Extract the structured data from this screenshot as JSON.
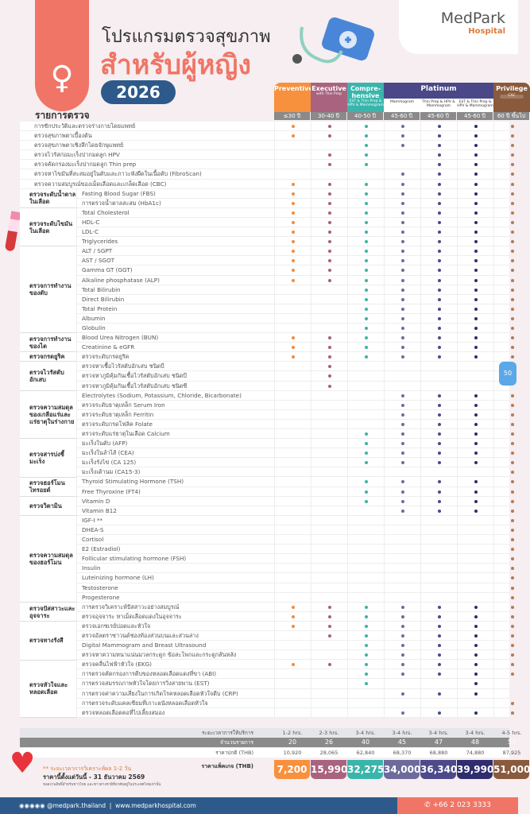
{
  "header": {
    "title_line1": "โปรแกรมตรวจสุขภาพ",
    "title_line2": "สำหรับผู้หญิง",
    "year": "2026",
    "brand": "MedPark",
    "brand_sub": "Hospital",
    "list_title": "รายการตรวจ"
  },
  "columns": [
    {
      "name": "Preventive",
      "sub": "",
      "age": "≤30 ปี",
      "color": "#f7913d",
      "dot": "#f28b3c"
    },
    {
      "name": "Executive",
      "sub": "with Thin Prep",
      "age": "30-40 ปี",
      "color": "#a9637f",
      "dot": "#a8607e"
    },
    {
      "name": "Compre-hensive",
      "sub": "EST & Thin Prep & HPV & Mammogram",
      "age": "40-50 ปี",
      "color": "#3ab5ac",
      "dot": "#3bb3a8"
    },
    {
      "name": "",
      "sub": "Mammogram",
      "age": "45-60 ปี",
      "color": "#6d6a9c",
      "dot": "#6d6a9c"
    },
    {
      "name": "",
      "sub": "Thin Prep & HPV & Mammogram",
      "age": "45-60 ปี",
      "color": "#4c4a8a",
      "dot": "#4c4a8a"
    },
    {
      "name": "",
      "sub": "EST & Thin Prep & HPV & Mammogram",
      "age": "45-60 ปี",
      "color": "#2f2d6e",
      "dot": "#2f2d6e"
    },
    {
      "name": "Privilege",
      "sub": "CAC",
      "age": "60 ปี ขึ้นไป",
      "color": "#8a5a3c",
      "dot": "#b07c5a"
    }
  ],
  "platinum_label": "Platinum",
  "groups": [
    {
      "label": "",
      "rows": [
        {
          "item": "การซักประวัติและตรวจร่างกายโดยแพทย์",
          "checks": "1111111"
        },
        {
          "item": "ตรวจสุขภาพตาเบื้องต้น",
          "checks": "1111111"
        },
        {
          "item": "ตรวจสุขภาพตาเชิงลึกโดยจักษุแพทย์",
          "checks": "0011111"
        },
        {
          "item": "ตรวจไวรัสก่อมะเร็งปากมดลูก HPV",
          "checks": "0110111"
        },
        {
          "item": "ตรวจคัดกรองมะเร็งปากมดลูก Thin prep",
          "checks": "0110111"
        },
        {
          "item": "ตรวจหาไขมันที่สะสมอยู่ในตับและภาวะพังผืดในเนื้อตับ (FibroScan)",
          "checks": "0001111"
        },
        {
          "item": "ตรวจความสมบูรณ์ของเม็ดเลือดและเกล็ดเลือด (CBC)",
          "checks": "1111111"
        }
      ]
    },
    {
      "label": "ตรวจระดับน้ำตาลในเลือด",
      "rows": [
        {
          "item": "Fasting Blood Sugar (FBS)",
          "checks": "1111111"
        },
        {
          "item": "การตรวจน้ำตาลสะสม (HbA1c)",
          "checks": "1111111"
        }
      ]
    },
    {
      "label": "ตรวจระดับไขมันในเลือด",
      "rows": [
        {
          "item": "Total Cholesterol",
          "checks": "1111111"
        },
        {
          "item": "HDL-C",
          "checks": "1111111"
        },
        {
          "item": "LDL-C",
          "checks": "1111111"
        },
        {
          "item": "Triglycerides",
          "checks": "1111111"
        }
      ]
    },
    {
      "label": "ตรวจการทำงานของตับ",
      "rows": [
        {
          "item": "ALT / SGPT",
          "checks": "1111111"
        },
        {
          "item": "AST / SGOT",
          "checks": "1111111"
        },
        {
          "item": "Gamma GT (GGT)",
          "checks": "1111111"
        },
        {
          "item": "Alkaline phosphatase (ALP)",
          "checks": "1111111"
        },
        {
          "item": "Total Bilirubin",
          "checks": "0011111"
        },
        {
          "item": "Direct Bilirubin",
          "checks": "0011111"
        },
        {
          "item": "Total Protein",
          "checks": "0011111"
        },
        {
          "item": "Albumin",
          "checks": "0011111"
        },
        {
          "item": "Globulin",
          "checks": "0011111"
        }
      ]
    },
    {
      "label": "ตรวจการทำงานของไต",
      "rows": [
        {
          "item": "Blood Urea Nitrogen (BUN)",
          "checks": "1111111"
        },
        {
          "item": "Creatinine & eGFR",
          "checks": "1111111"
        }
      ]
    },
    {
      "label": "ตรวจกรดยูริค",
      "rows": [
        {
          "item": "ตรวจระดับกรดยูริค",
          "checks": "1111111"
        }
      ]
    },
    {
      "label": "ตรวจไวรัสตับอักเสบ",
      "rows": [
        {
          "item": "ตรวจหาเชื้อไวรัสตับอักเสบ ชนิดบี",
          "checks": "0100000"
        },
        {
          "item": "ตรวจหาภูมิคุ้มกันเชื้อไวรัสตับอักเสบ ชนิดบี",
          "checks": "0100000"
        },
        {
          "item": "ตรวจหาภูมิคุ้มกันเชื้อไวรัสตับอักเสบ ชนิดซี",
          "checks": "0100000"
        }
      ]
    },
    {
      "label": "ตรวจความสมดุลของเกลือแร่และแร่ธาตุในร่างกาย",
      "rows": [
        {
          "item": "Electrolytes (Sodium, Potassium, Chloride, Bicarbonate)",
          "checks": "0001111"
        },
        {
          "item": "ตรวจระดับธาตุเหล็ก Serum Iron",
          "checks": "0001111"
        },
        {
          "item": "ตรวจระดับธาตุเหล็ก Ferritin",
          "checks": "0001111"
        },
        {
          "item": "ตรวจระดับกรดโฟลิค Folate",
          "checks": "0001111"
        },
        {
          "item": "ตรวจระดับแร่ธาตุในเลือด Calcium",
          "checks": "0011111"
        }
      ]
    },
    {
      "label": "ตรวจสารบ่งชี้มะเร็ง",
      "rows": [
        {
          "item": "มะเร็งในตับ (AFP)",
          "checks": "0011111"
        },
        {
          "item": "มะเร็งในลำไส้ (CEA)",
          "checks": "0011111"
        },
        {
          "item": "มะเร็งรังไข่ (CA 125)",
          "checks": "0011111"
        },
        {
          "item": "มะเร็งเต้านม (CA15-3)",
          "checks": "0000001"
        }
      ]
    },
    {
      "label": "ตรวจฮอร์โมนไทรอยด์",
      "rows": [
        {
          "item": "Thyroid Stimulating Hormone (TSH)",
          "checks": "0011111"
        },
        {
          "item": "Free Thyroxine (FT4)",
          "checks": "0011111"
        }
      ]
    },
    {
      "label": "ตรวจวิตามิน",
      "rows": [
        {
          "item": "Vitamin D",
          "checks": "0011111"
        },
        {
          "item": "Vitamin B12",
          "checks": "0001111"
        }
      ]
    },
    {
      "label": "ตรวจความสมดุลของฮอร์โมน",
      "rows": [
        {
          "item": "IGF-I **",
          "checks": "0000001"
        },
        {
          "item": "DHEA-S",
          "checks": "0000001"
        },
        {
          "item": "Cortisol",
          "checks": "0000001"
        },
        {
          "item": "E2 (Estradiol)",
          "checks": "0000001"
        },
        {
          "item": "Follicular stimulating hormone (FSH)",
          "checks": "0000001"
        },
        {
          "item": "Insulin",
          "checks": "0000001"
        },
        {
          "item": "Luteinizing hormone (LH)",
          "checks": "0000001"
        },
        {
          "item": "Testosterone",
          "checks": "0000001"
        },
        {
          "item": "Progesterone",
          "checks": "0000001"
        }
      ]
    },
    {
      "label": "ตรวจปัสสาวะและอุจจาระ",
      "rows": [
        {
          "item": "การตรวจวิเคราะห์ปัสสาวะอย่างสมบูรณ์",
          "checks": "1111111"
        },
        {
          "item": "ตรวจอุจจาระ หาเม็ดเลือดแดงในอุจจาระ",
          "checks": "1111111"
        }
      ]
    },
    {
      "label": "ตรวจทางรังสี",
      "rows": [
        {
          "item": "ตรวจเอกซเรย์ปอดและหัวใจ",
          "checks": "1111111"
        },
        {
          "item": "ตรวจอัลตราซาวนด์ช่องท้องส่วนบนและส่วนล่าง",
          "checks": "0111111"
        },
        {
          "item": "Digital Mammogram and Breast Ultrasound",
          "checks": "0011111"
        },
        {
          "item": "ตรวจหาความหนาแน่นมวลกระดูก ข้อสะโพกและกระดูกสันหลัง",
          "checks": "0011111"
        }
      ]
    },
    {
      "label": "ตรวจหัวใจและหลอดเลือด",
      "rows": [
        {
          "item": "ตรวจคลื่นไฟฟ้าหัวใจ (EKG)",
          "checks": "1111111"
        },
        {
          "item": "การตรวจคัดกรองการตีบของหลอดเลือดแดงที่ขา (ABI)",
          "checks": "0011111"
        },
        {
          "item": "การตรวจสมรรถภาพหัวใจโดยการวิ่งสายพาน (EST)",
          "checks": "0010010"
        },
        {
          "item": "การตรวจค่าความเสี่ยงในการเกิดโรคหลอดเลือดหัวใจตีบ (CRP)",
          "checks": "0001110"
        },
        {
          "item": "การตรวจระดับแคลเซียมที่เกาะผนังหลอดเลือดหัวใจ",
          "checks": "0000001"
        },
        {
          "item": "ตรวจหลอดเลือดคอที่ไปเลี้ยงสมอง",
          "checks": "0001111"
        }
      ]
    }
  ],
  "summary": {
    "duration_label": "ระยะเวลาการให้บริการ",
    "duration": [
      "1-2 hrs.",
      "2-3 hrs.",
      "3-4 hrs.",
      "3-4 hrs.",
      "3-4 hrs.",
      "3-4 hrs.",
      "4-5 hrs."
    ],
    "count_label": "จำนวนรายการ",
    "count": [
      "20",
      "26",
      "40",
      "45",
      "47",
      "48",
      "57"
    ],
    "normal_label": "ราคาปกติ (THB)",
    "normal": [
      "10,920",
      "28,065",
      "62,840",
      "68,370",
      "68,880",
      "74,880",
      "87,925"
    ],
    "package_label": "ราคาแพ็คเกจ (THB)",
    "package": [
      "7,200",
      "15,990",
      "32,275",
      "34,000",
      "36,340",
      "39,990",
      "51,000"
    ]
  },
  "notes": {
    "result_time": "** ระยะเวลาการวิเคราะห์ผล 1-2 วัน",
    "valid": "ราคานี้ตั้งแต่วันนี้ - 31 ธันวาคม 2569",
    "eligibility": "ขอสงวนสิทธิ์สำหรับชาวไทย และชาวต่างชาติที่อาศัยอยู่ในประเทศไทยเท่านั้น"
  },
  "footer": {
    "social": "@medpark.thailand",
    "website": "www.medparkhospital.com",
    "phone": "+66 2 023 3333"
  },
  "glucometer_reading": "50"
}
